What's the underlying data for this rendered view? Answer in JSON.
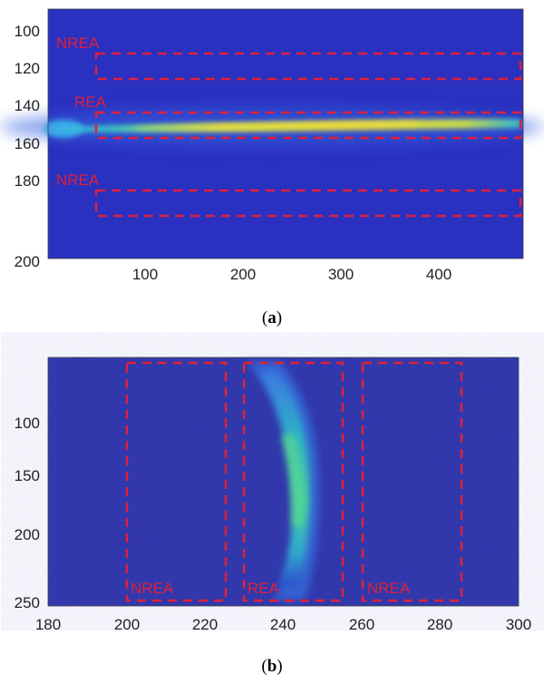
{
  "panels": [
    {
      "id": "a",
      "caption": {
        "open": "(",
        "letter": "a",
        "close": ")"
      },
      "x_ticks": [
        "100",
        "200",
        "300",
        "400"
      ],
      "y_ticks": [
        "100",
        "120",
        "140",
        "160",
        "180",
        "200"
      ],
      "regions": [
        {
          "label": "NREA"
        },
        {
          "label": "REA"
        },
        {
          "label": "NREA"
        }
      ]
    },
    {
      "id": "b",
      "caption": {
        "open": "(",
        "letter": "b",
        "close": ")"
      },
      "x_ticks": [
        "180",
        "200",
        "220",
        "240",
        "260",
        "280",
        "300"
      ],
      "y_ticks": [
        "100",
        "150",
        "200",
        "250"
      ],
      "regions": [
        {
          "label": "NREA"
        },
        {
          "label": "REA"
        },
        {
          "label": "NREA"
        }
      ]
    }
  ],
  "colors": {
    "background": "#2a34c8",
    "dark_background": "#2b2e9e",
    "beam_low": "#2f7fe8",
    "beam_mid": "#2fd0b8",
    "beam_high": "#e8e040",
    "dashed_box": "#e0203a"
  }
}
